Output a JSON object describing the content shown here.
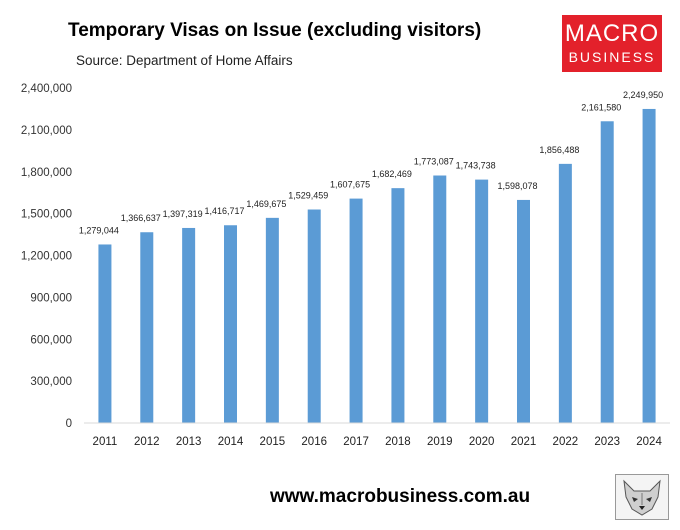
{
  "header": {
    "title": "Temporary Visas on Issue (excluding visitors)",
    "subtitle": "Source: Department of Home Affairs"
  },
  "logo": {
    "line1": "MACRO",
    "line2": "BUSINESS"
  },
  "footer": {
    "url": "www.macrobusiness.com.au"
  },
  "colors": {
    "bar": "#5b9bd5",
    "logo_bg": "#e3212b",
    "gridline": "#d9d9d9"
  },
  "icons": {
    "mascot": "wolf-icon"
  },
  "chart_data": {
    "type": "bar",
    "title": "Temporary Visas on Issue (excluding visitors)",
    "subtitle": "Source: Department of Home Affairs",
    "categories": [
      "2011",
      "2012",
      "2013",
      "2014",
      "2015",
      "2016",
      "2017",
      "2018",
      "2019",
      "2020",
      "2021",
      "2022",
      "2023",
      "2024"
    ],
    "values": [
      1279044,
      1366637,
      1397319,
      1416717,
      1469675,
      1529459,
      1607675,
      1682469,
      1773087,
      1743738,
      1598078,
      1856488,
      2161580,
      2249950
    ],
    "data_labels": [
      "1,279,044",
      "1,366,637",
      "1,397,319",
      "1,416,717",
      "1,469,675",
      "1,529,459",
      "1,607,675",
      "1,682,469",
      "1,773,087",
      "1,743,738",
      "1,598,078",
      "1,856,488",
      "2,161,580",
      "2,249,950"
    ],
    "yticks": [
      "0",
      "300,000",
      "600,000",
      "900,000",
      "1,200,000",
      "1,500,000",
      "1,800,000",
      "2,100,000",
      "2,400,000"
    ],
    "ylim": [
      0,
      2400000
    ],
    "grid": false,
    "legend": "none",
    "xlabel": "",
    "ylabel": ""
  }
}
